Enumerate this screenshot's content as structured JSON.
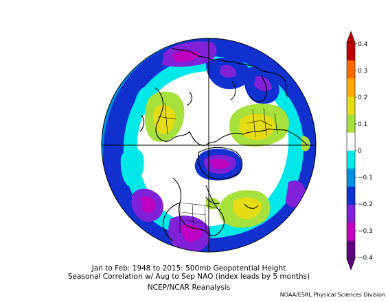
{
  "title": {
    "line1": "Jan to Feb: 1948 to 2015: 500mb Geopotential Height",
    "line2": "Seasonal Correlation w/ Aug to Sep NAO (index leads by 5 months)",
    "line3": "NCEP/NCAR Reanalysis"
  },
  "credit": "NOAA/ESRL Physical Sciences Division",
  "colorbar": {
    "labels": [
      "0.4",
      "0.3",
      "0.2",
      "0.1",
      "0",
      "−0.1",
      "−0.2",
      "−0.3",
      "−0.4"
    ],
    "colors": [
      "#c00000",
      "#ff6a00",
      "#ffaa00",
      "#e6dc14",
      "#a8e03c",
      "#ffffff",
      "#00e8e8",
      "#0090e0",
      "#1030d0",
      "#8020d8",
      "#c000c0",
      "#600080"
    ],
    "range": [
      -0.4,
      0.4
    ]
  },
  "map": {
    "projection": "north-polar-stereographic",
    "colors": {
      "yellow": "#e6dc14",
      "lime": "#a8e03c",
      "cyan": "#00e8e8",
      "sky": "#0090e0",
      "blue": "#1030d0",
      "purple": "#8020d8",
      "magenta": "#c000c0",
      "coast": "#000000"
    }
  }
}
